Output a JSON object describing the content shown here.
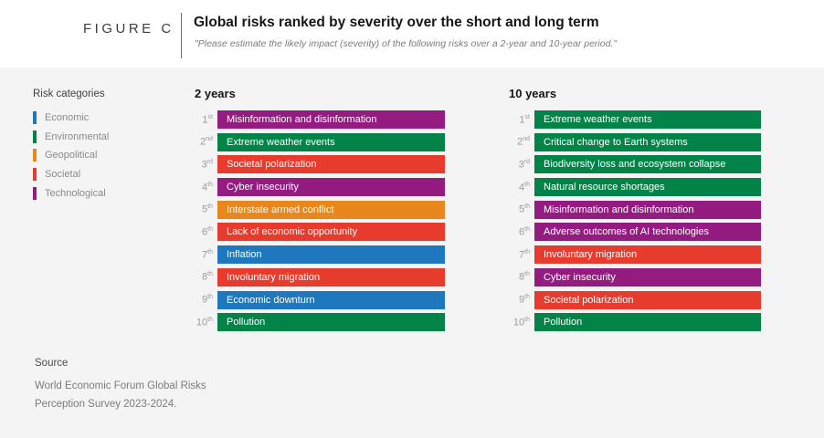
{
  "figure_label": "FIGURE C",
  "title": "Global risks ranked by severity over the short and long term",
  "subtitle": "\"Please estimate the likely impact (severity) of the following risks over a 2-year and 10-year period.\"",
  "colors": {
    "background_band": "#f5f4f4",
    "panel": "#ffffff",
    "economic": "#1f78be",
    "environmental": "#048348",
    "geopolitical": "#e8871e",
    "societal": "#e73b2e",
    "technological": "#941b80"
  },
  "legend": {
    "title": "Risk categories",
    "items": [
      {
        "label": "Economic",
        "color": "#1f78be"
      },
      {
        "label": "Environmental",
        "color": "#048348"
      },
      {
        "label": "Geopolitical",
        "color": "#e8871e"
      },
      {
        "label": "Societal",
        "color": "#e73b2e"
      },
      {
        "label": "Technological",
        "color": "#941b80"
      }
    ]
  },
  "chart_data": {
    "type": "table",
    "title": "Global risks ranked by severity over the short and long term",
    "columns": [
      {
        "header": "2 years",
        "rows": [
          {
            "rank": "1",
            "ordinal": "st",
            "label": "Misinformation and disinformation",
            "category": "Technological"
          },
          {
            "rank": "2",
            "ordinal": "nd",
            "label": "Extreme weather events",
            "category": "Environmental"
          },
          {
            "rank": "3",
            "ordinal": "rd",
            "label": "Societal polarization",
            "category": "Societal"
          },
          {
            "rank": "4",
            "ordinal": "th",
            "label": "Cyber insecurity",
            "category": "Technological"
          },
          {
            "rank": "5",
            "ordinal": "th",
            "label": "Interstate armed conflict",
            "category": "Geopolitical"
          },
          {
            "rank": "6",
            "ordinal": "th",
            "label": "Lack of economic opportunity",
            "category": "Societal"
          },
          {
            "rank": "7",
            "ordinal": "th",
            "label": "Inflation",
            "category": "Economic"
          },
          {
            "rank": "8",
            "ordinal": "th",
            "label": "Involuntary migration",
            "category": "Societal"
          },
          {
            "rank": "9",
            "ordinal": "th",
            "label": "Economic downturn",
            "category": "Economic"
          },
          {
            "rank": "10",
            "ordinal": "th",
            "label": "Pollution",
            "category": "Environmental"
          }
        ]
      },
      {
        "header": "10 years",
        "rows": [
          {
            "rank": "1",
            "ordinal": "st",
            "label": "Extreme weather events",
            "category": "Environmental"
          },
          {
            "rank": "2",
            "ordinal": "nd",
            "label": "Critical change to Earth systems",
            "category": "Environmental"
          },
          {
            "rank": "3",
            "ordinal": "rd",
            "label": "Biodiversity loss and ecosystem collapse",
            "category": "Environmental"
          },
          {
            "rank": "4",
            "ordinal": "th",
            "label": "Natural resource shortages",
            "category": "Environmental"
          },
          {
            "rank": "5",
            "ordinal": "th",
            "label": "Misinformation and disinformation",
            "category": "Technological"
          },
          {
            "rank": "6",
            "ordinal": "th",
            "label": "Adverse outcomes of AI technologies",
            "category": "Technological"
          },
          {
            "rank": "7",
            "ordinal": "th",
            "label": "Involuntary migration",
            "category": "Societal"
          },
          {
            "rank": "8",
            "ordinal": "th",
            "label": "Cyber insecurity",
            "category": "Technological"
          },
          {
            "rank": "9",
            "ordinal": "th",
            "label": "Societal polarization",
            "category": "Societal"
          },
          {
            "rank": "10",
            "ordinal": "th",
            "label": "Pollution",
            "category": "Environmental"
          }
        ]
      }
    ]
  },
  "source": {
    "label": "Source",
    "lines": [
      "World Economic Forum Global Risks",
      "Perception Survey 2023-2024."
    ]
  }
}
